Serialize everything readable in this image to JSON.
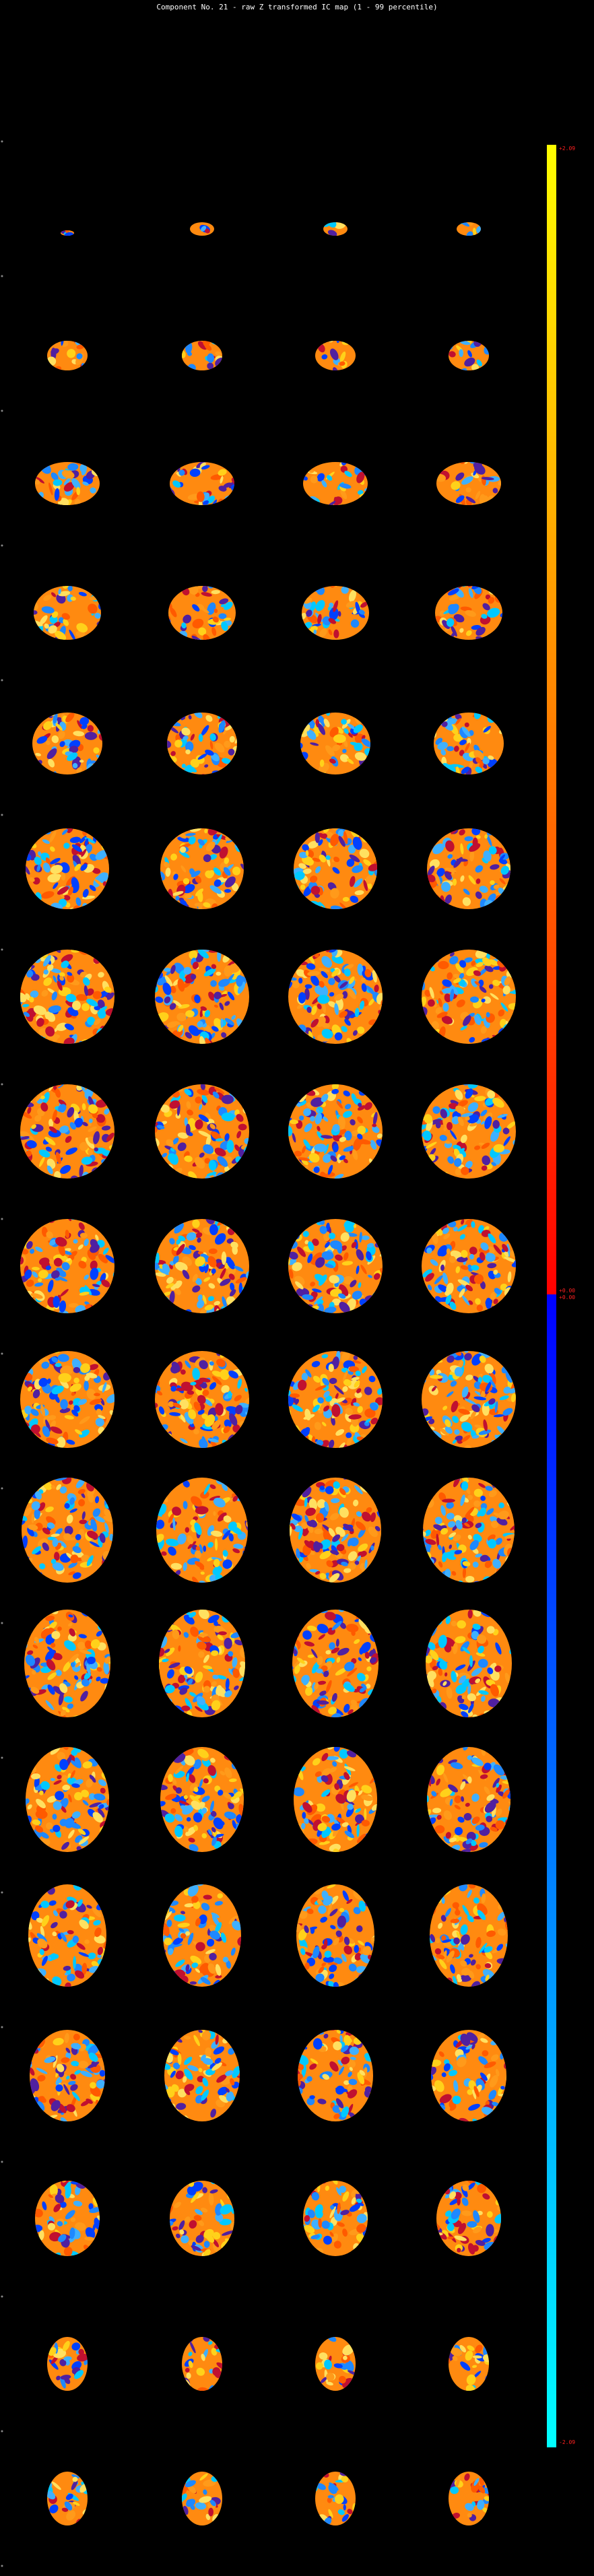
{
  "title": "Component No. 21 - raw Z transformed IC map (1 - 99 percentile)",
  "colorbar": {
    "max_label": "+2.09",
    "mid_label_top": "+0.00",
    "mid_label_bottom": "+0.00",
    "min_label": "-2.09",
    "colors": {
      "pos_top": "#ffff00",
      "pos_mid": "#ff8000",
      "pos_bottom": "#ff0000",
      "neg_top": "#0000ff",
      "neg_mid": "#0080ff",
      "neg_bottom": "#00ffff"
    }
  },
  "grid": {
    "columns": 4,
    "rows": 19,
    "slice_count": 73
  },
  "colors": {
    "background": "#000000",
    "title": "#ffffff",
    "label": "#ff2020"
  }
}
